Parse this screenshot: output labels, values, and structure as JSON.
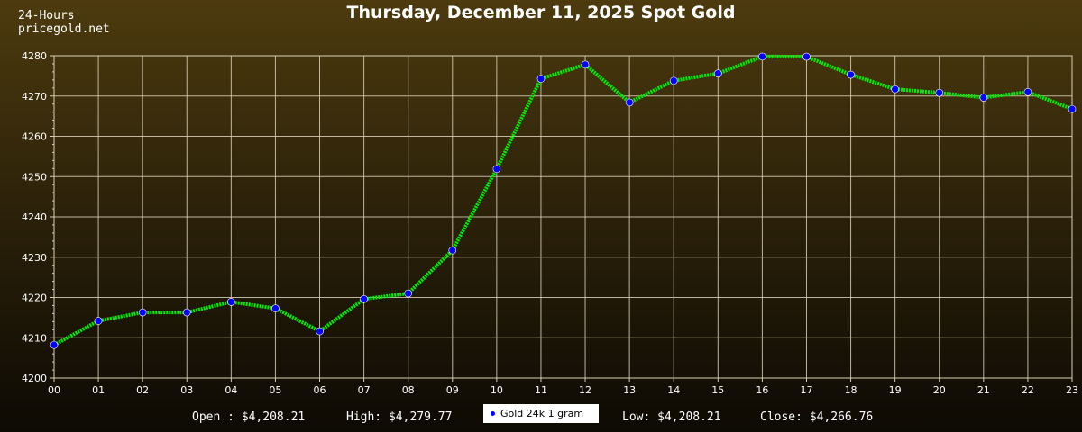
{
  "brand": {
    "line1": "24-Hours",
    "line2": "pricegold.net"
  },
  "footer": {
    "open": "Open : $4,208.21",
    "high": "High: $4,279.77",
    "low": "Low: $4,208.21",
    "close": "Close: $4,266.76"
  },
  "colors": {
    "line": "#00ee00",
    "marker": "#0000ff",
    "grid": "#d9d0b8",
    "legend_bg": "#ffffff"
  },
  "chart_data": {
    "type": "line",
    "title": "Thursday, December 11, 2025 Spot Gold",
    "xlabel": "",
    "ylabel": "",
    "categories": [
      "00",
      "01",
      "02",
      "03",
      "04",
      "05",
      "06",
      "07",
      "08",
      "09",
      "10",
      "11",
      "12",
      "13",
      "14",
      "15",
      "16",
      "17",
      "18",
      "19",
      "20",
      "21",
      "22",
      "23"
    ],
    "series": [
      {
        "name": "Gold 24k 1 gram",
        "values": [
          4208.21,
          4214.2,
          4216.3,
          4216.3,
          4218.9,
          4217.3,
          4211.6,
          4219.6,
          4221.0,
          4231.7,
          4251.9,
          4274.3,
          4277.8,
          4268.4,
          4273.8,
          4275.6,
          4279.8,
          4279.77,
          4275.3,
          4271.7,
          4270.8,
          4269.6,
          4271.0,
          4266.76
        ]
      }
    ],
    "ylim": [
      4200,
      4280
    ],
    "yticks": [
      4200,
      4210,
      4220,
      4230,
      4240,
      4250,
      4260,
      4270,
      4280
    ],
    "grid": true,
    "legend_position": "bottom-center"
  }
}
